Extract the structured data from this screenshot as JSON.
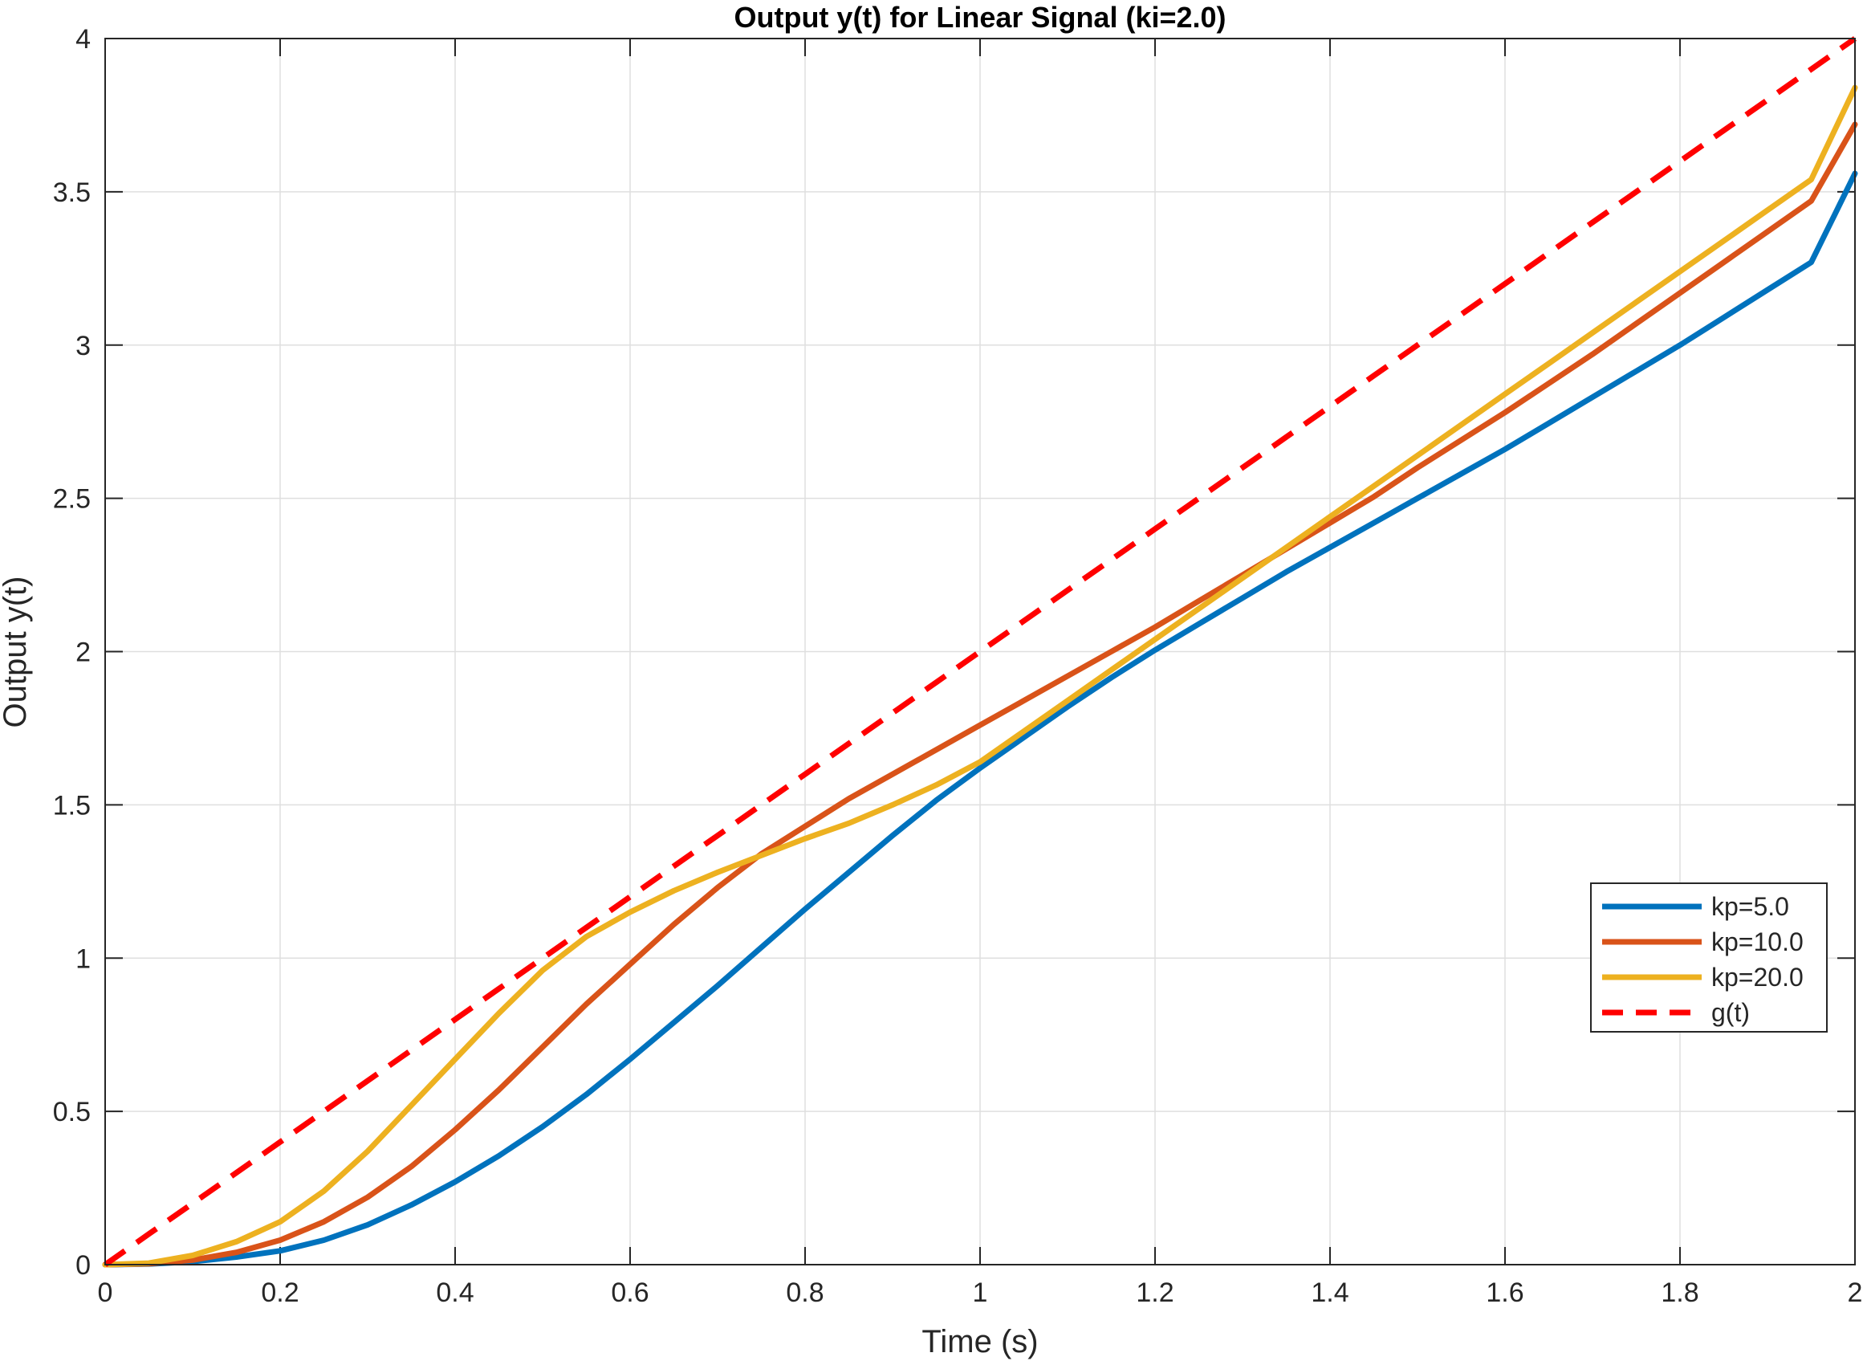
{
  "chart_data": {
    "type": "line",
    "title": "Output y(t) for Linear Signal (ki=2.0)",
    "xlabel": "Time (s)",
    "ylabel": "Output y(t)",
    "xlim": [
      0,
      2
    ],
    "ylim": [
      0,
      4
    ],
    "xticks": [
      "0",
      "0.2",
      "0.4",
      "0.6",
      "0.8",
      "1",
      "1.2",
      "1.4",
      "1.6",
      "1.8",
      "2"
    ],
    "yticks": [
      "0",
      "0.5",
      "1",
      "1.5",
      "2",
      "2.5",
      "3",
      "3.5",
      "4"
    ],
    "grid": true,
    "legend_position": "lower-right",
    "x": [
      0,
      0.05,
      0.1,
      0.15,
      0.2,
      0.25,
      0.3,
      0.35,
      0.4,
      0.45,
      0.5,
      0.55,
      0.6,
      0.65,
      0.7,
      0.75,
      0.8,
      0.85,
      0.9,
      0.95,
      1.0,
      1.05,
      1.1,
      1.15,
      1.2,
      1.25,
      1.3,
      1.35,
      1.4,
      1.45,
      1.5,
      1.55,
      1.6,
      1.65,
      1.7,
      1.75,
      1.8,
      1.85,
      1.9,
      1.95,
      2.0
    ],
    "series": [
      {
        "name": "kp=5.0",
        "color": "#0072BD",
        "dashed": false,
        "values": [
          0,
          0.002,
          0.01,
          0.025,
          0.045,
          0.08,
          0.13,
          0.195,
          0.27,
          0.355,
          0.45,
          0.555,
          0.67,
          0.79,
          0.91,
          1.035,
          1.16,
          1.28,
          1.4,
          1.515,
          1.62,
          1.72,
          1.82,
          1.915,
          2.005,
          2.09,
          2.175,
          2.26,
          2.34,
          2.42,
          2.5,
          2.58,
          2.66,
          2.745,
          2.83,
          2.915,
          3.0,
          3.09,
          3.18,
          3.27,
          3.56
        ]
      },
      {
        "name": "kp=10.0",
        "color": "#D95319",
        "dashed": false,
        "values": [
          0,
          0.003,
          0.015,
          0.04,
          0.08,
          0.14,
          0.22,
          0.32,
          0.44,
          0.57,
          0.71,
          0.85,
          0.98,
          1.11,
          1.23,
          1.34,
          1.43,
          1.52,
          1.6,
          1.68,
          1.76,
          1.84,
          1.92,
          2.0,
          2.08,
          2.165,
          2.25,
          2.335,
          2.42,
          2.505,
          2.6,
          2.69,
          2.78,
          2.875,
          2.97,
          3.07,
          3.17,
          3.27,
          3.37,
          3.47,
          3.72
        ]
      },
      {
        "name": "kp=20.0",
        "color": "#EDB120",
        "dashed": false,
        "values": [
          0,
          0.005,
          0.03,
          0.075,
          0.14,
          0.24,
          0.37,
          0.52,
          0.67,
          0.82,
          0.96,
          1.07,
          1.15,
          1.22,
          1.28,
          1.335,
          1.39,
          1.44,
          1.5,
          1.565,
          1.64,
          1.74,
          1.84,
          1.94,
          2.04,
          2.14,
          2.24,
          2.34,
          2.44,
          2.54,
          2.64,
          2.74,
          2.84,
          2.94,
          3.04,
          3.14,
          3.24,
          3.34,
          3.44,
          3.54,
          3.84
        ]
      },
      {
        "name": "g(t)",
        "color": "#FF0000",
        "dashed": true,
        "values": [
          0,
          0.1,
          0.2,
          0.3,
          0.4,
          0.5,
          0.6,
          0.7,
          0.8,
          0.9,
          1.0,
          1.1,
          1.2,
          1.3,
          1.4,
          1.5,
          1.6,
          1.7,
          1.8,
          1.9,
          2.0,
          2.1,
          2.2,
          2.3,
          2.4,
          2.5,
          2.6,
          2.7,
          2.8,
          2.9,
          3.0,
          3.1,
          3.2,
          3.3,
          3.4,
          3.5,
          3.6,
          3.7,
          3.8,
          3.9,
          4.0
        ]
      }
    ]
  }
}
